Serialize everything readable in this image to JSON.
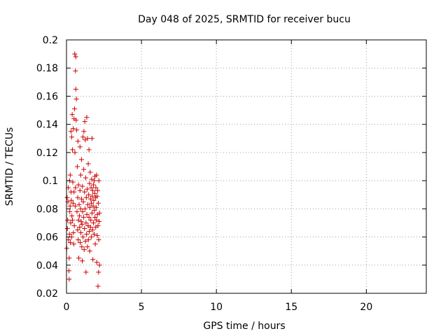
{
  "chart_data": {
    "type": "scatter",
    "title": "Day 048 of 2025, SRMTID for receiver bucu",
    "xlabel": "GPS time / hours",
    "ylabel": "SRMTID / TECUs",
    "xlim": [
      0,
      24
    ],
    "ylim": [
      0.02,
      0.2
    ],
    "x_ticks": [
      0,
      5,
      10,
      15,
      20
    ],
    "y_ticks": [
      0.02,
      0.04,
      0.06,
      0.08,
      0.1,
      0.12,
      0.14,
      0.16,
      0.18,
      0.2
    ],
    "x_tick_labels": [
      "0",
      "5",
      "10",
      "15",
      "20"
    ],
    "y_tick_labels": [
      "0.02",
      "0.04",
      "0.06",
      "0.08",
      "0.1",
      "0.12",
      "0.14",
      "0.16",
      "0.18",
      "0.2"
    ],
    "grid": true,
    "marker": "+",
    "marker_color": "#cc0000",
    "series": [
      {
        "points": [
          [
            0.02,
            0.052
          ],
          [
            0.04,
            0.088
          ],
          [
            0.06,
            0.066
          ],
          [
            0.08,
            0.072
          ],
          [
            0.1,
            0.085
          ],
          [
            0.12,
            0.095
          ],
          [
            0.14,
            0.058
          ],
          [
            0.16,
            0.036
          ],
          [
            0.18,
            0.03
          ],
          [
            0.18,
            0.045
          ],
          [
            0.2,
            0.1
          ],
          [
            0.2,
            0.062
          ],
          [
            0.22,
            0.078
          ],
          [
            0.24,
            0.082
          ],
          [
            0.25,
            0.104
          ],
          [
            0.26,
            0.056
          ],
          [
            0.28,
            0.07
          ],
          [
            0.3,
            0.135
          ],
          [
            0.3,
            0.092
          ],
          [
            0.32,
            0.086
          ],
          [
            0.34,
            0.06
          ],
          [
            0.35,
            0.131
          ],
          [
            0.36,
            0.075
          ],
          [
            0.38,
            0.147
          ],
          [
            0.4,
            0.072
          ],
          [
            0.4,
            0.122
          ],
          [
            0.42,
            0.099
          ],
          [
            0.44,
            0.084
          ],
          [
            0.45,
            0.137
          ],
          [
            0.46,
            0.063
          ],
          [
            0.48,
            0.055
          ],
          [
            0.5,
            0.092
          ],
          [
            0.5,
            0.144
          ],
          [
            0.52,
            0.068
          ],
          [
            0.54,
            0.151
          ],
          [
            0.55,
            0.19
          ],
          [
            0.56,
            0.12
          ],
          [
            0.58,
            0.082
          ],
          [
            0.6,
            0.178
          ],
          [
            0.6,
            0.095
          ],
          [
            0.62,
            0.165
          ],
          [
            0.62,
            0.188
          ],
          [
            0.64,
            0.143
          ],
          [
            0.66,
            0.158
          ],
          [
            0.68,
            0.136
          ],
          [
            0.7,
            0.078
          ],
          [
            0.72,
            0.11
          ],
          [
            0.74,
            0.065
          ],
          [
            0.75,
            0.088
          ],
          [
            0.76,
            0.128
          ],
          [
            0.78,
            0.058
          ],
          [
            0.8,
            0.097
          ],
          [
            0.8,
            0.072
          ],
          [
            0.82,
            0.045
          ],
          [
            0.84,
            0.083
          ],
          [
            0.86,
            0.075
          ],
          [
            0.88,
            0.067
          ],
          [
            0.9,
            0.093
          ],
          [
            0.9,
            0.124
          ],
          [
            0.92,
            0.056
          ],
          [
            0.94,
            0.08
          ],
          [
            0.95,
            0.104
          ],
          [
            0.96,
            0.063
          ],
          [
            0.98,
            0.071
          ],
          [
            1.0,
            0.087
          ],
          [
            1.0,
            0.115
          ],
          [
            1.02,
            0.053
          ],
          [
            1.04,
            0.069
          ],
          [
            1.05,
            0.043
          ],
          [
            1.06,
            0.096
          ],
          [
            1.08,
            0.078
          ],
          [
            1.1,
            0.06
          ],
          [
            1.1,
            0.131
          ],
          [
            1.12,
            0.085
          ],
          [
            1.14,
            0.074
          ],
          [
            1.15,
            0.108
          ],
          [
            1.16,
            0.135
          ],
          [
            1.18,
            0.051
          ],
          [
            1.2,
            0.092
          ],
          [
            1.2,
            0.066
          ],
          [
            1.22,
            0.142
          ],
          [
            1.24,
            0.08
          ],
          [
            1.25,
            0.129
          ],
          [
            1.26,
            0.057
          ],
          [
            1.28,
            0.102
          ],
          [
            1.3,
            0.07
          ],
          [
            1.3,
            0.035
          ],
          [
            1.32,
            0.088
          ],
          [
            1.34,
            0.062
          ],
          [
            1.35,
            0.145
          ],
          [
            1.36,
            0.076
          ],
          [
            1.38,
            0.094
          ],
          [
            1.4,
            0.053
          ],
          [
            1.4,
            0.13
          ],
          [
            1.42,
            0.083
          ],
          [
            1.44,
            0.068
          ],
          [
            1.45,
            0.112
          ],
          [
            1.46,
            0.058
          ],
          [
            1.48,
            0.09
          ],
          [
            1.5,
            0.074
          ],
          [
            1.5,
            0.122
          ],
          [
            1.52,
            0.064
          ],
          [
            1.54,
            0.098
          ],
          [
            1.55,
            0.05
          ],
          [
            1.56,
            0.081
          ],
          [
            1.58,
            0.106
          ],
          [
            1.6,
            0.067
          ],
          [
            1.6,
            0.087
          ],
          [
            1.62,
            0.072
          ],
          [
            1.64,
            0.095
          ],
          [
            1.65,
            0.06
          ],
          [
            1.66,
            0.084
          ],
          [
            1.68,
            0.101
          ],
          [
            1.7,
            0.077
          ],
          [
            1.7,
            0.13
          ],
          [
            1.72,
            0.089
          ],
          [
            1.74,
            0.065
          ],
          [
            1.75,
            0.093
          ],
          [
            1.76,
            0.044
          ],
          [
            1.78,
            0.082
          ],
          [
            1.8,
            0.097
          ],
          [
            1.8,
            0.07
          ],
          [
            1.82,
            0.086
          ],
          [
            1.84,
            0.062
          ],
          [
            1.85,
            0.1
          ],
          [
            1.86,
            0.079
          ],
          [
            1.88,
            0.091
          ],
          [
            1.9,
            0.074
          ],
          [
            1.9,
            0.103
          ],
          [
            1.92,
            0.055
          ],
          [
            1.94,
            0.088
          ],
          [
            1.95,
            0.067
          ],
          [
            1.96,
            0.095
          ],
          [
            1.98,
            0.081
          ],
          [
            2.0,
            0.072
          ],
          [
            2.0,
            0.104
          ],
          [
            2.02,
            0.042
          ],
          [
            2.04,
            0.089
          ],
          [
            2.05,
            0.061
          ],
          [
            2.06,
            0.076
          ],
          [
            2.08,
            0.093
          ],
          [
            2.1,
            0.025
          ],
          [
            2.1,
            0.068
          ],
          [
            2.12,
            0.084
          ],
          [
            2.14,
            0.035
          ],
          [
            2.15,
            0.058
          ],
          [
            2.16,
            0.1
          ],
          [
            2.18,
            0.071
          ],
          [
            2.2,
            0.077
          ],
          [
            2.2,
            0.04
          ]
        ]
      }
    ]
  }
}
